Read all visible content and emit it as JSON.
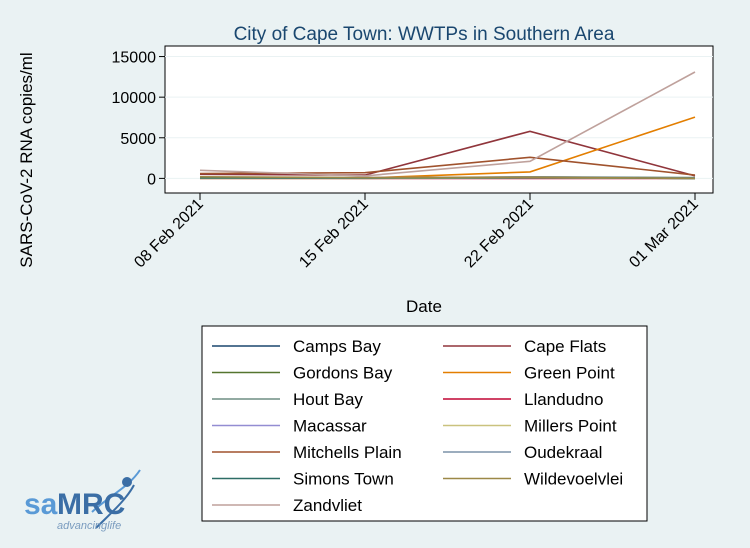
{
  "chart_data": {
    "type": "line",
    "title": "City of Cape Town: WWTPs in Southern Area",
    "xlabel": "Date",
    "ylabel": "SARS-CoV-2 RNA copies/ml",
    "x": [
      "08 Feb 2021",
      "15 Feb 2021",
      "22 Feb 2021",
      "01 Mar 2021"
    ],
    "ylim": [
      -1800,
      16300
    ],
    "yticks": [
      0,
      5000,
      10000,
      15000
    ],
    "ytick_labels": [
      "0",
      "5000",
      "10000",
      "15000"
    ],
    "grid": "y-major",
    "legend_position": "bottom",
    "series": [
      {
        "name": "Camps Bay",
        "color": "#1a476f",
        "values": [
          150,
          50,
          150,
          0
        ]
      },
      {
        "name": "Cape Flats",
        "color": "#90353b",
        "values": [
          500,
          400,
          5800,
          300
        ]
      },
      {
        "name": "Gordons Bay",
        "color": "#55752f",
        "values": [
          100,
          50,
          100,
          0
        ]
      },
      {
        "name": "Green Point",
        "color": "#e37e00",
        "values": [
          100,
          50,
          800,
          7550
        ]
      },
      {
        "name": "Hout Bay",
        "color": "#6e8e84",
        "values": [
          100,
          0,
          200,
          100
        ]
      },
      {
        "name": "Llandudno",
        "color": "#c10534",
        "values": [
          0,
          0,
          0,
          0
        ]
      },
      {
        "name": "Macassar",
        "color": "#938dd2",
        "values": [
          100,
          100,
          100,
          0
        ]
      },
      {
        "name": "Millers Point",
        "color": "#cac27e",
        "values": [
          0,
          0,
          50,
          0
        ]
      },
      {
        "name": "Mitchells Plain",
        "color": "#a0522d",
        "values": [
          600,
          700,
          2600,
          400
        ]
      },
      {
        "name": "Oudekraal",
        "color": "#7b92a8",
        "values": [
          100,
          50,
          200,
          0
        ]
      },
      {
        "name": "Simons Town",
        "color": "#2d6d66",
        "values": [
          50,
          50,
          100,
          0
        ]
      },
      {
        "name": "Wildevoelvlei",
        "color": "#9c8847",
        "values": [
          200,
          100,
          150,
          0
        ]
      },
      {
        "name": "Zandvliet",
        "color": "#bfa19c",
        "values": [
          1000,
          300,
          2100,
          13100
        ]
      }
    ]
  },
  "logo": {
    "text_sa": "sa",
    "text_mrc": "MRC",
    "tagline": "advancinglife"
  }
}
